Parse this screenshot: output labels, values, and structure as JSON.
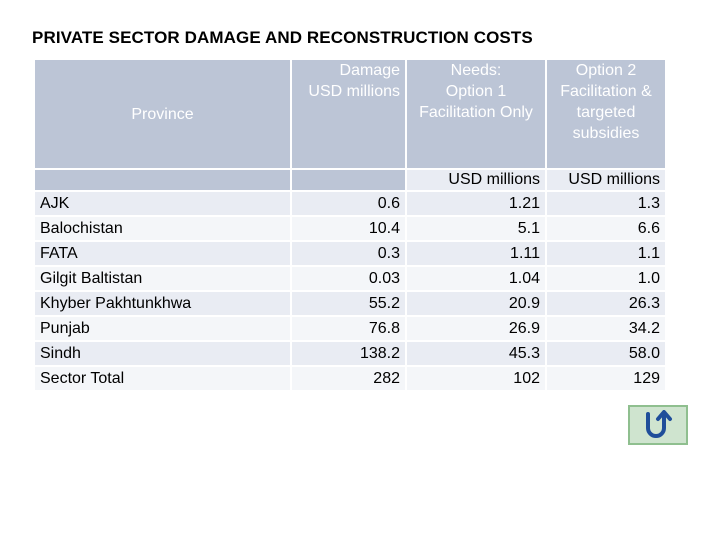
{
  "title": "PRIVATE SECTOR DAMAGE AND RECONSTRUCTION COSTS",
  "table": {
    "headers": {
      "province": "Province",
      "damage": [
        "Damage",
        "USD millions"
      ],
      "option1": [
        "Needs:",
        "Option 1",
        "Facilitation Only"
      ],
      "option2": [
        "Option 2",
        "Facilitation &",
        "targeted",
        "subsidies"
      ]
    },
    "units": [
      "USD millions",
      "USD millions"
    ],
    "rows": [
      {
        "province": "AJK",
        "damage": "0.6",
        "option1": "1.21",
        "option2": "1.3"
      },
      {
        "province": "Balochistan",
        "damage": "10.4",
        "option1": "5.1",
        "option2": "6.6"
      },
      {
        "province": "FATA",
        "damage": "0.3",
        "option1": "1.11",
        "option2": "1.1"
      },
      {
        "province": "Gilgit Baltistan",
        "damage": "0.03",
        "option1": "1.04",
        "option2": "1.0"
      },
      {
        "province": "Khyber Pakhtunkhwa",
        "damage": "55.2",
        "option1": "20.9",
        "option2": "26.3"
      },
      {
        "province": "Punjab",
        "damage": "76.8",
        "option1": "26.9",
        "option2": "34.2"
      },
      {
        "province": "Sindh",
        "damage": "138.2",
        "option1": "45.3",
        "option2": "58.0"
      },
      {
        "province": "Sector Total",
        "damage": "282",
        "option1": "102",
        "option2": "129"
      }
    ]
  },
  "nav": {
    "back_icon": "return-arrow-icon",
    "accent": "#1f4e9a"
  }
}
